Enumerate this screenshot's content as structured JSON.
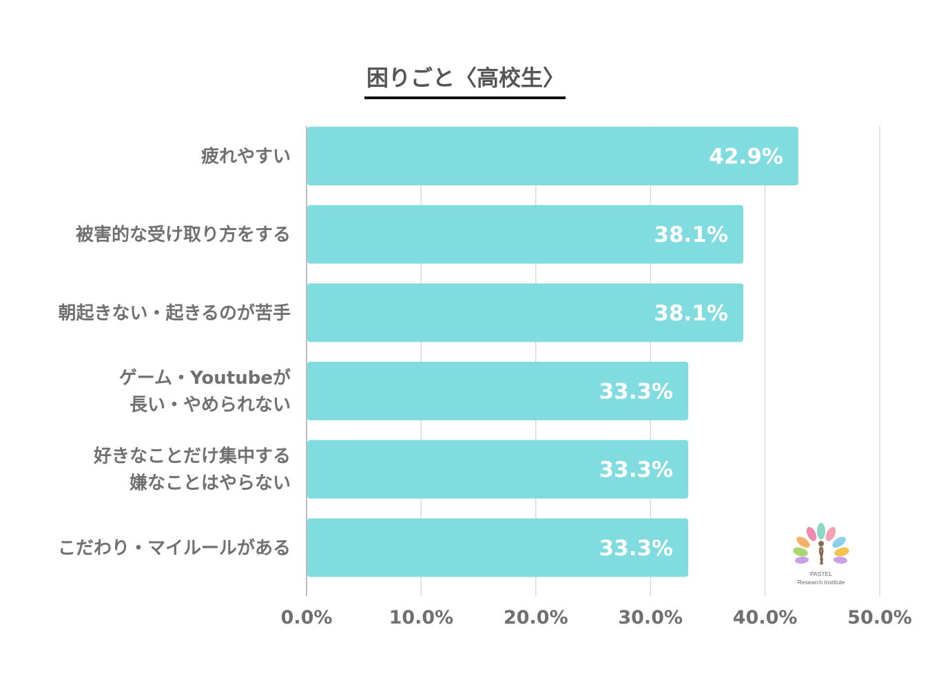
{
  "chart_data": {
    "type": "bar",
    "orientation": "horizontal",
    "title": "困りごと〈高校生〉",
    "categories": [
      [
        "疲れやすい"
      ],
      [
        "被害的な受け取り方をする"
      ],
      [
        "朝起きない・起きるのが苦手"
      ],
      [
        "ゲーム・Youtubeが",
        "長い・やめられない"
      ],
      [
        "好きなことだけ集中する",
        "嫌なことはやらない"
      ],
      [
        "こだわり・マイルールがある"
      ]
    ],
    "values": [
      42.9,
      38.1,
      38.1,
      33.3,
      33.3,
      33.3
    ],
    "value_labels": [
      "42.9%",
      "38.1%",
      "38.1%",
      "33.3%",
      "33.3%",
      "33.3%"
    ],
    "xlim": [
      0,
      50
    ],
    "x_ticks": [
      "0.0%",
      "10.0%",
      "20.0%",
      "30.0%",
      "40.0%",
      "50.0%"
    ],
    "grid": true,
    "colors": {
      "bar": "#80dcdf",
      "grid": "#d9d9d9",
      "axis": "#bdbdbd",
      "title_underline": "#111111"
    }
  },
  "logo": {
    "line1": "PASTEL",
    "line2": "Research Institute"
  }
}
